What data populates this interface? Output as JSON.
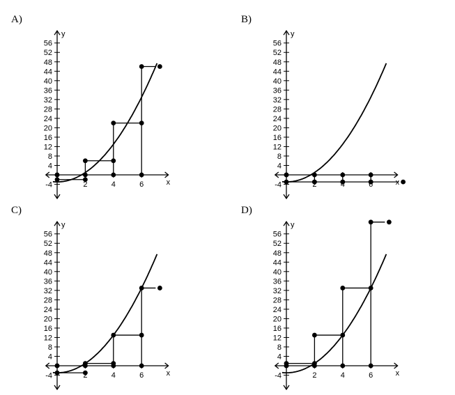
{
  "chart_data": [
    {
      "type": "step_graph",
      "label": "A)",
      "xlabel": "x",
      "ylabel": "y",
      "x_ticks": [
        2,
        4,
        6
      ],
      "y_ticks": [
        -4,
        4,
        8,
        12,
        16,
        20,
        24,
        28,
        32,
        36,
        40,
        44,
        48,
        52,
        56
      ],
      "xlim": [
        -1,
        8
      ],
      "ylim": [
        -6,
        60
      ],
      "curve": "parabola",
      "steps": [
        {
          "x0": 0,
          "x1": 2,
          "y": -2,
          "left_closed": true,
          "right_closed": true
        },
        {
          "x0": 2,
          "x1": 4,
          "y": 6,
          "left_closed": true,
          "right_closed": true
        },
        {
          "x0": 4,
          "x1": 6,
          "y": 22,
          "left_closed": true,
          "right_closed": true
        },
        {
          "x0": 6,
          "x1": 7,
          "y": 46,
          "left_closed": true,
          "right_closed": false
        }
      ]
    },
    {
      "type": "step_graph",
      "label": "B)",
      "xlabel": "x",
      "ylabel": "y",
      "x_ticks": [
        2,
        4,
        6
      ],
      "y_ticks": [
        -4,
        4,
        8,
        12,
        16,
        20,
        24,
        28,
        32,
        36,
        40,
        44,
        48,
        52,
        56
      ],
      "xlim": [
        -1,
        8
      ],
      "ylim": [
        -6,
        60
      ],
      "curve": "parabola",
      "steps": [
        {
          "x0": 0,
          "x1": 2,
          "y": -3,
          "left_closed": true,
          "right_closed": true
        },
        {
          "x0": 2,
          "x1": 4,
          "y": -3,
          "left_closed": true,
          "right_closed": true
        },
        {
          "x0": 4,
          "x1": 6,
          "y": -3,
          "left_closed": true,
          "right_closed": true
        },
        {
          "x0": 6,
          "x1": 8,
          "y": -3,
          "left_closed": true,
          "right_closed": false
        }
      ]
    },
    {
      "type": "step_graph",
      "label": "C)",
      "xlabel": "x",
      "ylabel": "y",
      "x_ticks": [
        2,
        4,
        6
      ],
      "y_ticks": [
        -4,
        4,
        8,
        12,
        16,
        20,
        24,
        28,
        32,
        36,
        40,
        44,
        48,
        52,
        56
      ],
      "xlim": [
        -1,
        8
      ],
      "ylim": [
        -6,
        60
      ],
      "curve": "parabola",
      "steps": [
        {
          "x0": 0,
          "x1": 2,
          "y": -3,
          "left_closed": true,
          "right_closed": true
        },
        {
          "x0": 2,
          "x1": 4,
          "y": 1,
          "left_closed": true,
          "right_closed": true
        },
        {
          "x0": 4,
          "x1": 6,
          "y": 13,
          "left_closed": true,
          "right_closed": true
        },
        {
          "x0": 6,
          "x1": 7,
          "y": 33,
          "left_closed": true,
          "right_closed": false
        }
      ]
    },
    {
      "type": "step_graph",
      "label": "D)",
      "xlabel": "x",
      "ylabel": "y",
      "x_ticks": [
        2,
        4,
        6
      ],
      "y_ticks": [
        -4,
        4,
        8,
        12,
        16,
        20,
        24,
        28,
        32,
        36,
        40,
        44,
        48,
        52,
        56
      ],
      "xlim": [
        -1,
        8
      ],
      "ylim": [
        -6,
        60
      ],
      "curve": "parabola",
      "steps": [
        {
          "x0": 0,
          "x1": 2,
          "y": 1,
          "left_closed": true,
          "right_closed": true
        },
        {
          "x0": 2,
          "x1": 4,
          "y": 13,
          "left_closed": true,
          "right_closed": true
        },
        {
          "x0": 4,
          "x1": 6,
          "y": 33,
          "left_closed": true,
          "right_closed": true
        },
        {
          "x0": 6,
          "x1": 7,
          "y": 61,
          "left_closed": true,
          "right_closed": false
        }
      ]
    }
  ]
}
